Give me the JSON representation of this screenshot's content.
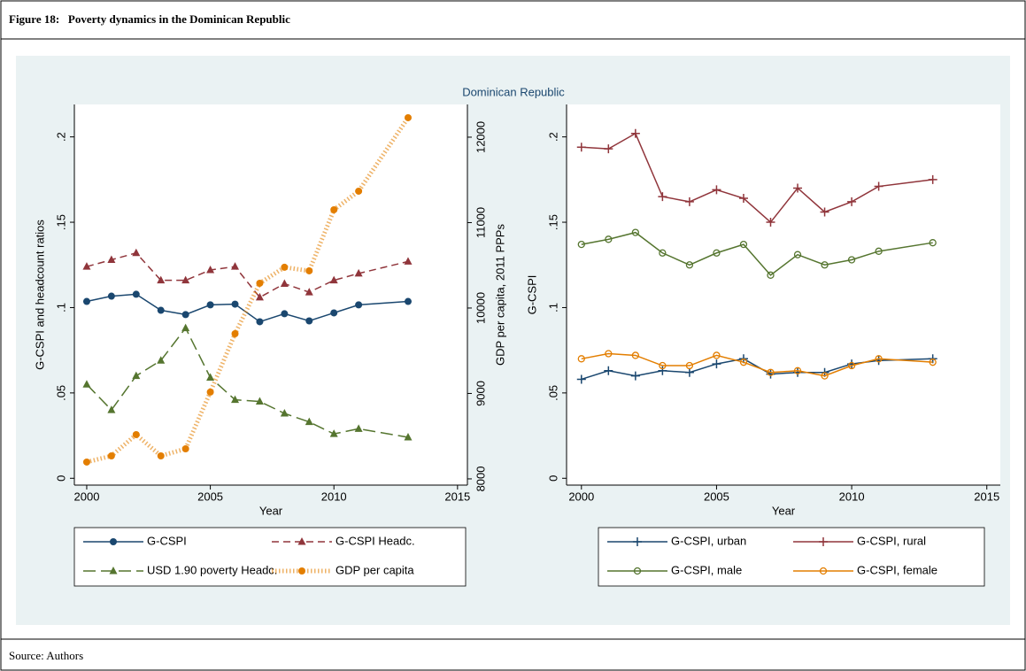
{
  "figure": {
    "caption": "Figure 18:   Poverty dynamics in the Dominican Republic",
    "suptitle": "Dominican Republic",
    "source": "Source: Authors"
  },
  "chart_data": [
    {
      "type": "line",
      "xlabel": "Year",
      "ylabel": "G-CSPI and headcount ratios",
      "y2label": "GDP per capita, 2011 PPPs",
      "x": [
        2000,
        2001,
        2002,
        2003,
        2004,
        2005,
        2006,
        2007,
        2008,
        2009,
        2010,
        2011,
        2013
      ],
      "xlim": [
        1999.5,
        2015.4
      ],
      "xticks": [
        2000,
        2005,
        2010,
        2015
      ],
      "ylim": [
        -0.004,
        0.219
      ],
      "yticks": [
        0,
        {
          "value": 0.05,
          "label": ".05"
        },
        {
          "value": 0.1,
          "label": ".1"
        },
        {
          "value": 0.15,
          "label": ".15"
        },
        {
          "value": 0.2,
          "label": ".2"
        }
      ],
      "y2lim": [
        7927,
        12383
      ],
      "y2ticks": [
        8000,
        9000,
        10000,
        11000,
        12000
      ],
      "legend": "bottom",
      "series": [
        {
          "name": "G-CSPI",
          "color": "#1a476f",
          "marker": "circle",
          "dash": "solid",
          "values": [
            0.1036,
            0.1067,
            0.1078,
            0.0984,
            0.0959,
            0.1016,
            0.102,
            0.0917,
            0.0964,
            0.0922,
            0.0969,
            0.1016,
            0.1036
          ]
        },
        {
          "name": "G-CSPI Headc.",
          "color": "#90353b",
          "marker": "triangle",
          "dash": "dashed",
          "values": [
            0.124,
            0.128,
            0.132,
            0.116,
            0.116,
            0.122,
            0.124,
            0.106,
            0.114,
            0.109,
            0.116,
            0.12,
            0.127
          ]
        },
        {
          "name": "USD 1.90 poverty Headc.",
          "color": "#55752f",
          "marker": "triangle",
          "dash": "longdash",
          "values": [
            0.055,
            0.04,
            0.06,
            0.069,
            0.088,
            0.059,
            0.046,
            0.045,
            0.038,
            0.033,
            0.026,
            0.029,
            0.024
          ]
        },
        {
          "name": "GDP per capita",
          "color": "#e37e00",
          "marker": "circle",
          "dash": "dotted",
          "axis": "y2",
          "values": [
            8197,
            8269,
            8518,
            8269,
            8352,
            9016,
            9699,
            10290,
            10477,
            10435,
            11150,
            11368,
            12228
          ]
        }
      ]
    },
    {
      "type": "line",
      "xlabel": "Year",
      "ylabel": "G-CSPI",
      "x": [
        2000,
        2001,
        2002,
        2003,
        2004,
        2005,
        2006,
        2007,
        2008,
        2009,
        2010,
        2011,
        2013
      ],
      "xlim": [
        1999.45,
        2015.5
      ],
      "xticks": [
        2000,
        2005,
        2010,
        2015
      ],
      "ylim": [
        -0.004,
        0.219
      ],
      "yticks": [
        0,
        {
          "value": 0.05,
          "label": ".05"
        },
        {
          "value": 0.1,
          "label": ".1"
        },
        {
          "value": 0.15,
          "label": ".15"
        },
        {
          "value": 0.2,
          "label": ".2"
        }
      ],
      "legend": "bottom",
      "series": [
        {
          "name": "G-CSPI, urban",
          "color": "#1a476f",
          "marker": "plus",
          "dash": "solid",
          "values": [
            0.058,
            0.063,
            0.06,
            0.063,
            0.062,
            0.067,
            0.07,
            0.061,
            0.062,
            0.062,
            0.067,
            0.069,
            0.07
          ]
        },
        {
          "name": "G-CSPI, rural",
          "color": "#90353b",
          "marker": "plus",
          "dash": "solid",
          "values": [
            0.194,
            0.193,
            0.202,
            0.165,
            0.162,
            0.169,
            0.164,
            0.15,
            0.17,
            0.156,
            0.162,
            0.171,
            0.175
          ]
        },
        {
          "name": "G-CSPI, male",
          "color": "#55752f",
          "marker": "hollow-circle",
          "dash": "solid",
          "values": [
            0.137,
            0.14,
            0.144,
            0.132,
            0.125,
            0.132,
            0.137,
            0.119,
            0.131,
            0.125,
            0.128,
            0.133,
            0.138
          ]
        },
        {
          "name": "G-CSPI, female",
          "color": "#e37e00",
          "marker": "hollow-circle",
          "dash": "solid",
          "values": [
            0.07,
            0.073,
            0.072,
            0.066,
            0.066,
            0.072,
            0.068,
            0.062,
            0.063,
            0.06,
            0.066,
            0.07,
            0.068
          ]
        }
      ]
    }
  ]
}
